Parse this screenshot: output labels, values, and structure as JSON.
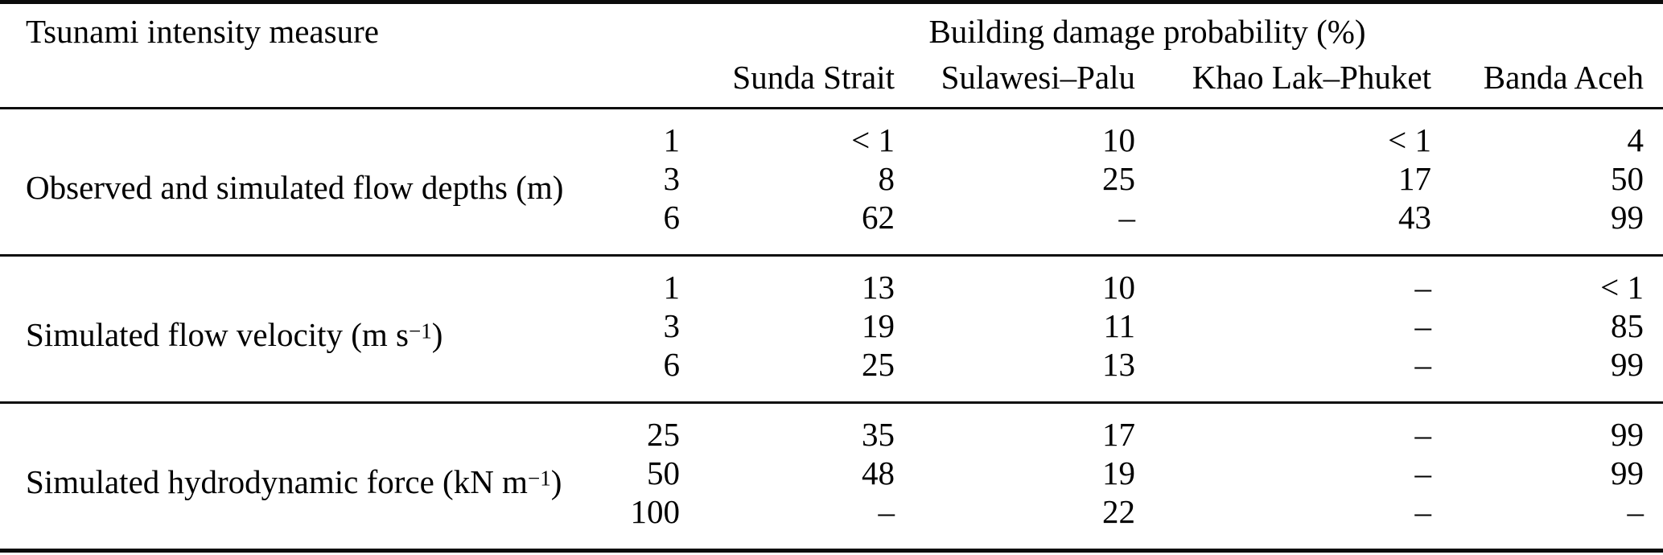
{
  "table": {
    "header": {
      "measure_label": "Tsunami intensity measure",
      "group_label": "Building damage probability (%)",
      "sites": [
        "Sunda Strait",
        "Sulawesi–Palu",
        "Khao Lak–Phuket",
        "Banda Aceh"
      ]
    },
    "groups": [
      {
        "label_pre": "Observed and simulated flow depths (m)",
        "label_sup": "",
        "label_post": "",
        "rows": [
          {
            "intensity": "1",
            "values": [
              "< 1",
              "10",
              "< 1",
              "4"
            ]
          },
          {
            "intensity": "3",
            "values": [
              "8",
              "25",
              "17",
              "50"
            ]
          },
          {
            "intensity": "6",
            "values": [
              "62",
              "–",
              "43",
              "99"
            ]
          }
        ]
      },
      {
        "label_pre": "Simulated flow velocity (m s",
        "label_sup": "−1",
        "label_post": ")",
        "rows": [
          {
            "intensity": "1",
            "values": [
              "13",
              "10",
              "–",
              "< 1"
            ]
          },
          {
            "intensity": "3",
            "values": [
              "19",
              "11",
              "–",
              "85"
            ]
          },
          {
            "intensity": "6",
            "values": [
              "25",
              "13",
              "–",
              "99"
            ]
          }
        ]
      },
      {
        "label_pre": "Simulated hydrodynamic force (kN m",
        "label_sup": "−1",
        "label_post": ")",
        "rows": [
          {
            "intensity": "25",
            "values": [
              "35",
              "17",
              "–",
              "99"
            ]
          },
          {
            "intensity": "50",
            "values": [
              "48",
              "19",
              "–",
              "99"
            ]
          },
          {
            "intensity": "100",
            "values": [
              "–",
              "22",
              "–",
              "–"
            ]
          }
        ]
      }
    ]
  }
}
